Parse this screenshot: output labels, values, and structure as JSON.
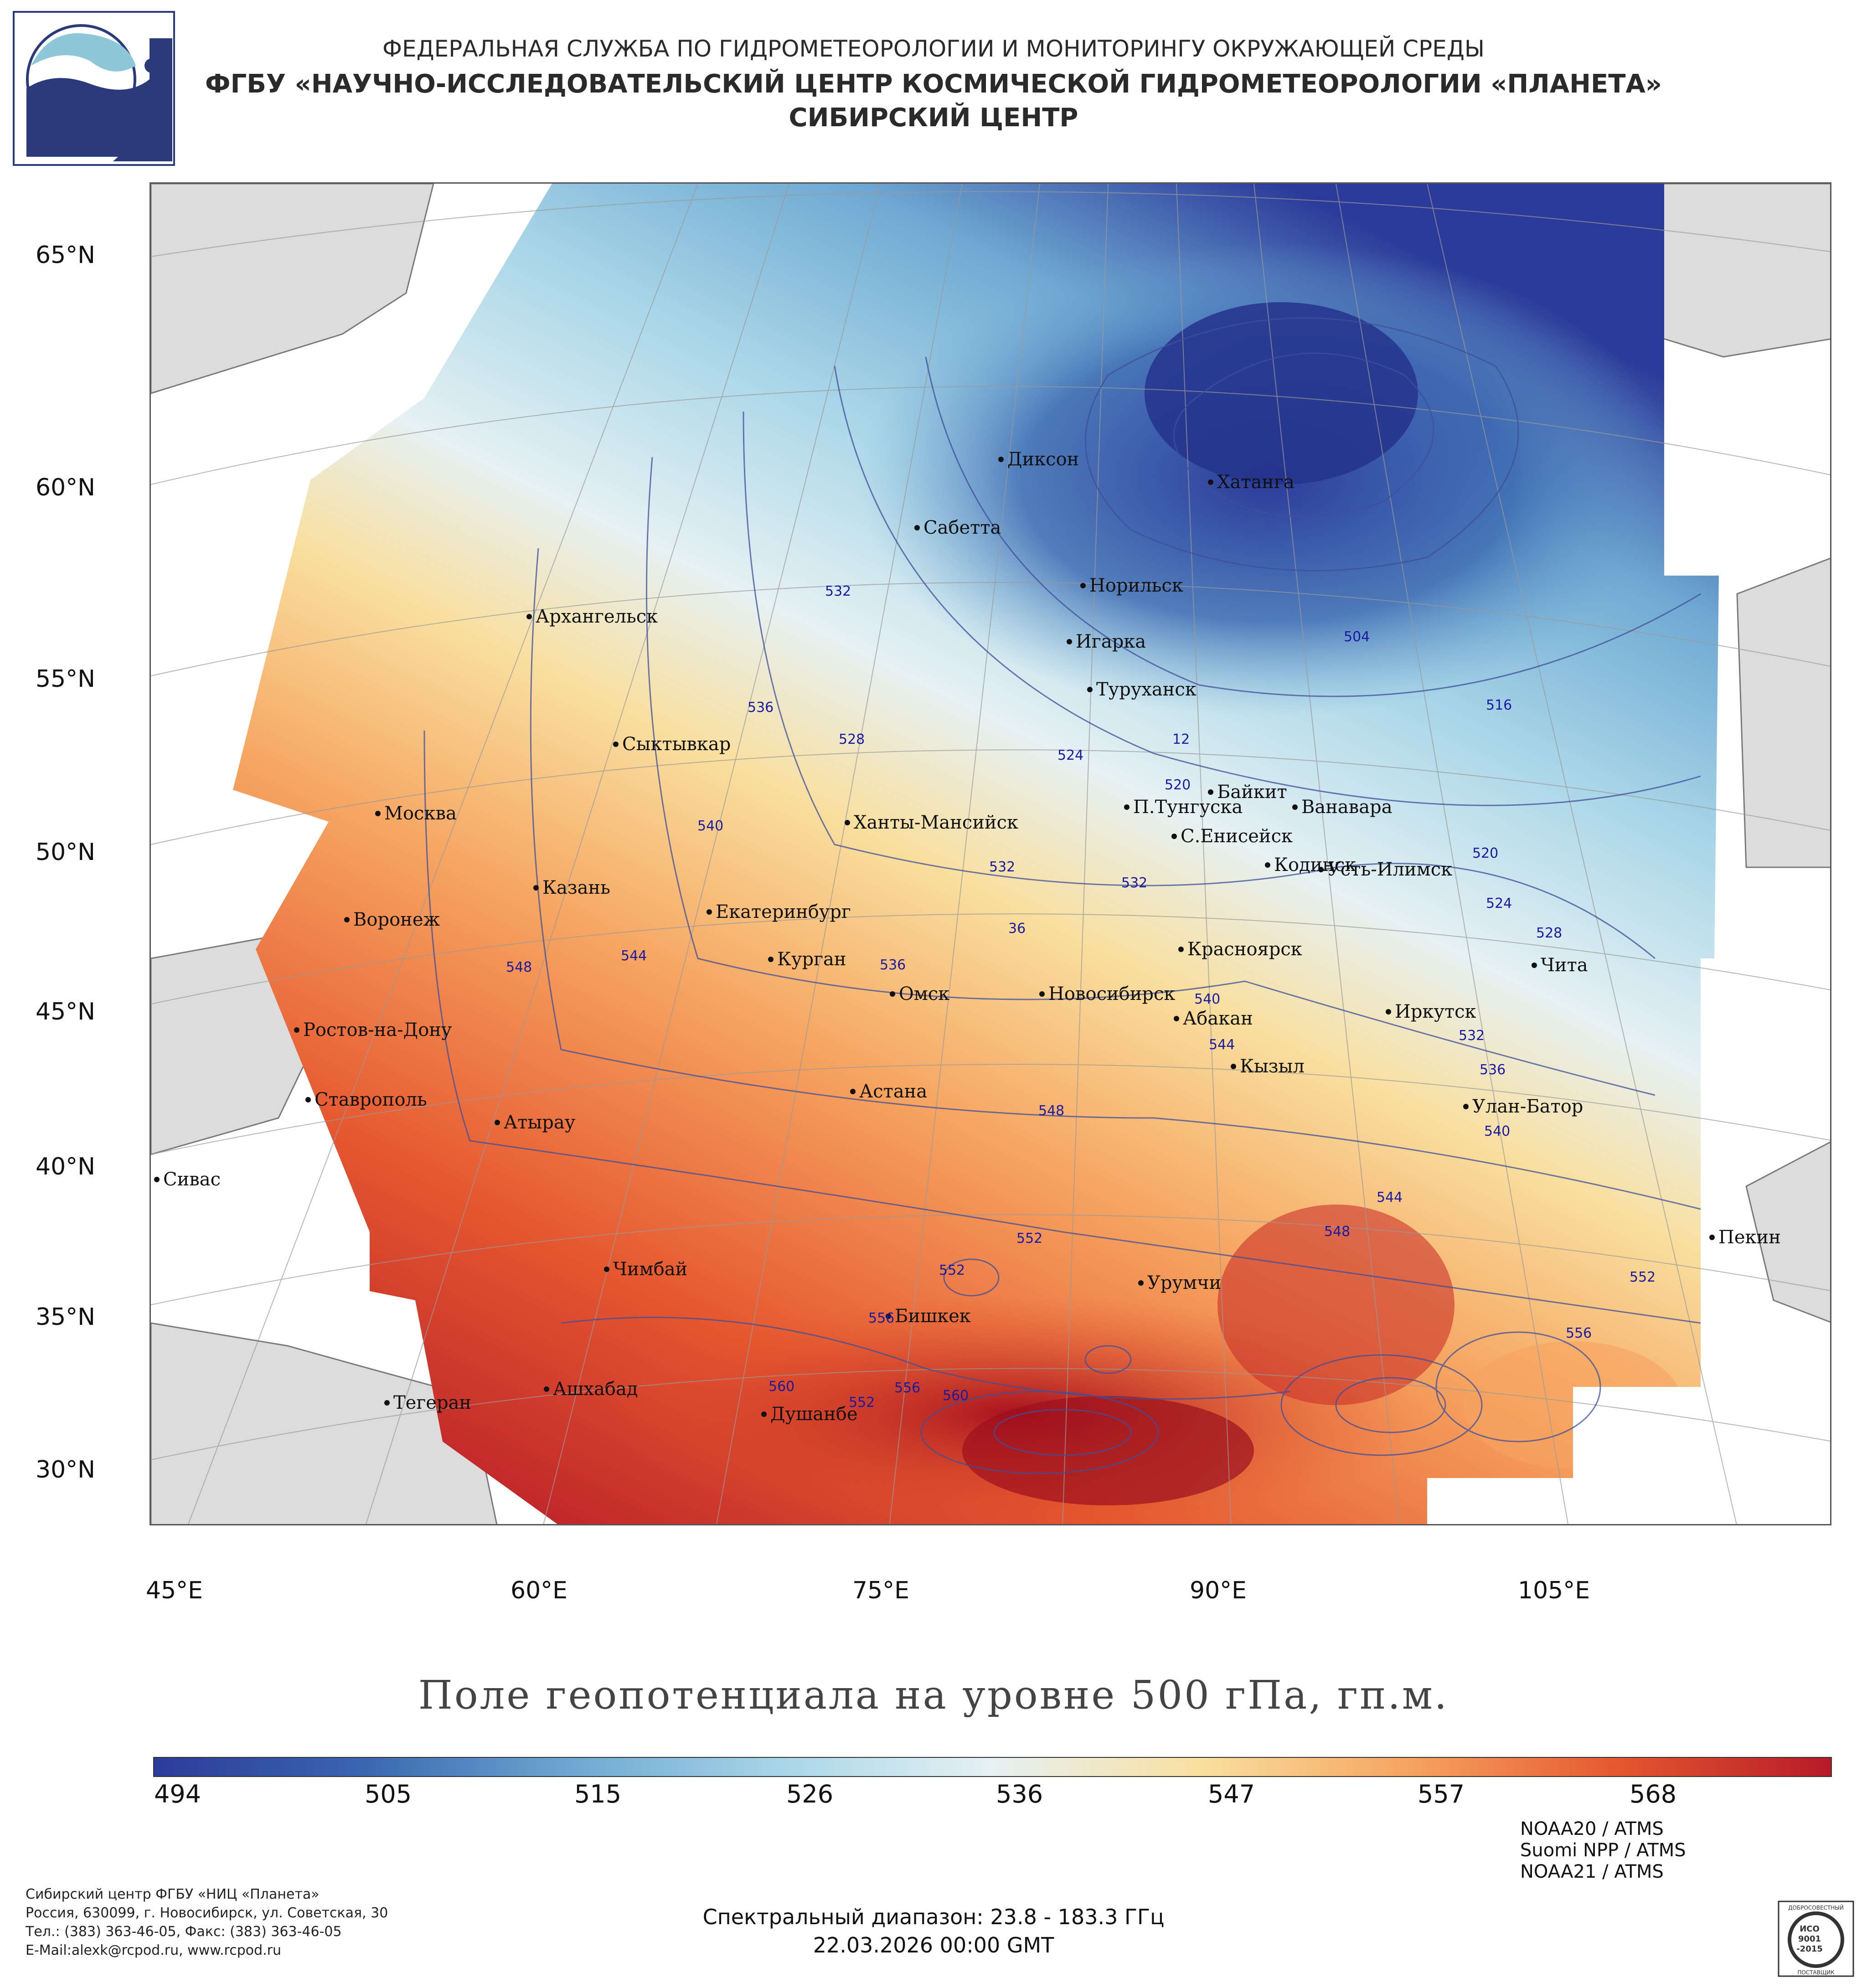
{
  "header": {
    "line1": "ФЕДЕРАЛЬНАЯ СЛУЖБА ПО ГИДРОМЕТЕОРОЛОГИИ И МОНИТОРИНГУ ОКРУЖАЮЩЕЙ СРЕДЫ",
    "line2": "ФГБУ «НАУЧНО-ИССЛЕДОВАТЕЛЬСКИЙ ЦЕНТР КОСМИЧЕСКОЙ ГИДРОМЕТЕОРОЛОГИИ «ПЛАНЕТА»",
    "line3": "СИБИРСКИЙ ЦЕНТР"
  },
  "logo": {
    "icon": "wave-globe-logo-icon",
    "colors": {
      "light": "#8ec8d8",
      "dark": "#2b3a7a"
    }
  },
  "map": {
    "lat_labels": [
      "65°N",
      "60°N",
      "55°N",
      "50°N",
      "45°N",
      "40°N",
      "35°N",
      "30°N"
    ],
    "lon_labels": [
      "45°E",
      "60°E",
      "75°E",
      "90°E",
      "105°E"
    ],
    "cities": [
      "Диксон",
      "Хатанга",
      "Сабетта",
      "Норильск",
      "Архангельск",
      "Игарка",
      "Туруханск",
      "Сыктывкар",
      "Байкит",
      "П.Тунгуска",
      "Ванавара",
      "Москва",
      "Ханты-Мансийск",
      "С.Енисейск",
      "Кодинск",
      "Усть-Илимск",
      "Казань",
      "Екатеринбург",
      "Воронеж",
      "Красноярск",
      "Курган",
      "Чита",
      "Омск",
      "Новосибирск",
      "Иркутск",
      "Абакан",
      "Ростов-на-Дону",
      "Кызыл",
      "Астана",
      "Ставрополь",
      "Улан-Батор",
      "Атырау",
      "Сивас",
      "Пекин",
      "Чимбай",
      "Урумчи",
      "Бишкек",
      "Ашхабад",
      "Тегеран",
      "Душанбе"
    ],
    "isolines": [
      "532",
      "504",
      "536",
      "516",
      "12",
      "528",
      "524",
      "520",
      "540",
      "532",
      "520",
      "532",
      "524",
      "528",
      "36",
      "548",
      "544",
      "536",
      "540",
      "544",
      "532",
      "536",
      "548",
      "540",
      "544",
      "548",
      "552",
      "552",
      "552",
      "556",
      "556",
      "556",
      "560",
      "560",
      "552"
    ]
  },
  "map_title": "Поле геопотенциала на уровне 500 гПа, гп.м.",
  "colorbar": {
    "labels": [
      "494",
      "505",
      "515",
      "526",
      "536",
      "547",
      "557",
      "568"
    ],
    "colors": [
      "#2c3b9a",
      "#3a66b0",
      "#6ea8d2",
      "#a9d6e8",
      "#e6f1f3",
      "#f9df9f",
      "#f6a35f",
      "#e5562f",
      "#b71a28"
    ]
  },
  "satellites": [
    "NOAA20 / ATMS",
    "Suomi NPP / ATMS",
    "NOAA21 / ATMS"
  ],
  "footer_left": {
    "line1": "Сибирский центр ФГБУ «НИЦ «Планета»",
    "line2": "Россия, 630099, г. Новосибирск, ул. Советская, 30",
    "line3": "Тел.: (383) 363-46-05, Факс: (383) 363-46-05",
    "line4": "E-Mail:alexk@rcpod.ru, www.rcpod.ru"
  },
  "footer_center": {
    "spectral": "Спектральный диапазон: 23.8 - 183.3 ГГц",
    "datetime": "22.03.2026 00:00 GMT"
  },
  "badge": {
    "icon": "iso-9001-badge-icon",
    "top": "ДОБРОСОВЕСТНЫЙ",
    "mid1": "ИСО",
    "mid2": "9001",
    "mid3": "-2015",
    "bottom": "ПОСТАВЩИК"
  }
}
